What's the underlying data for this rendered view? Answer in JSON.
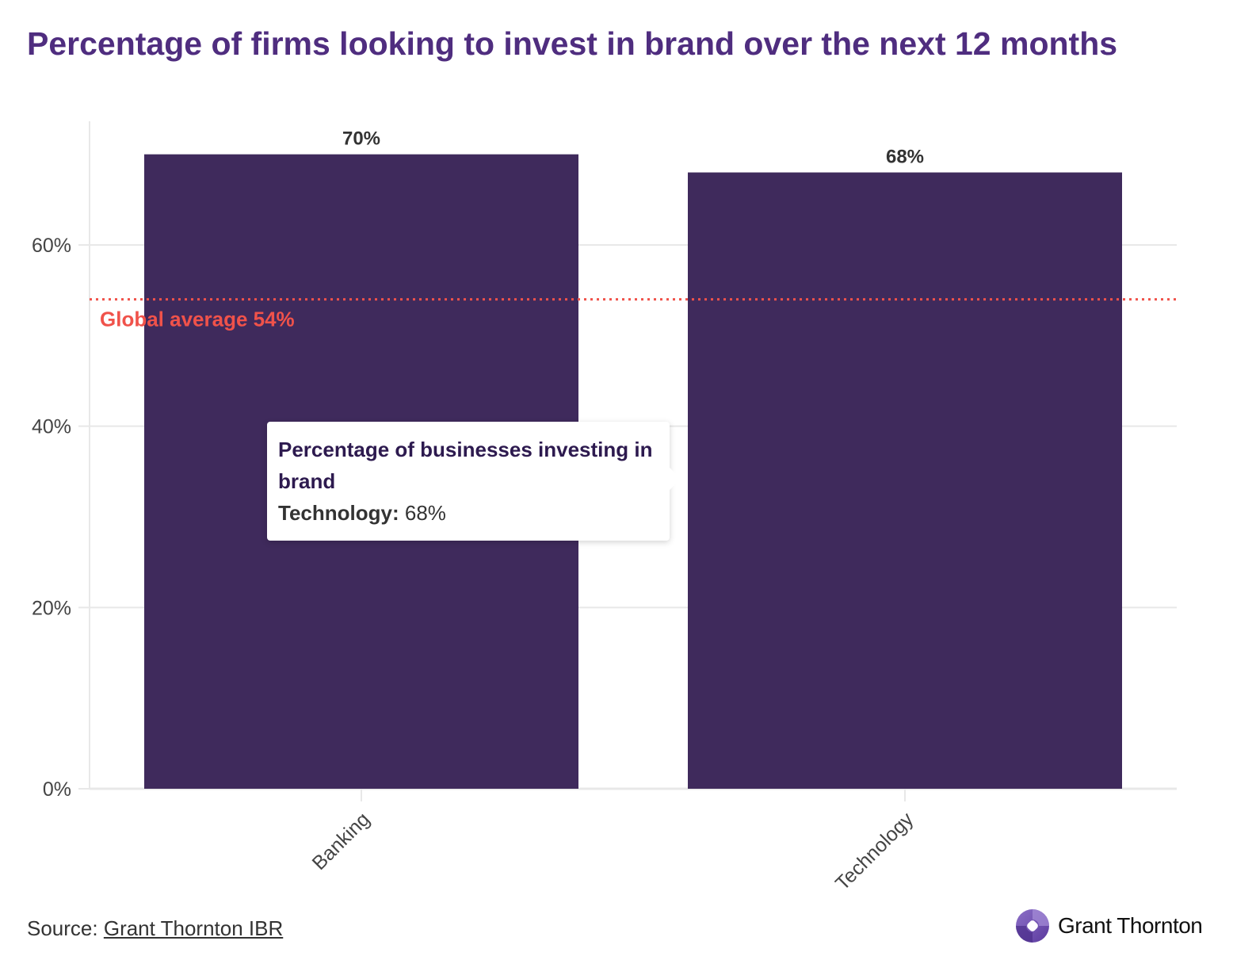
{
  "title": "Percentage of firms looking to invest in brand over the next 12 months",
  "chart_data": {
    "type": "bar",
    "title": "Percentage of firms looking to invest in brand over the next 12 months",
    "categories": [
      "Banking",
      "Technology"
    ],
    "series": [
      {
        "name": "Percentage of businesses investing in brand",
        "values": [
          70,
          68
        ]
      }
    ],
    "data_labels": [
      "70%",
      "68%"
    ],
    "xlabel": "",
    "ylabel": "",
    "ylim": [
      0,
      70
    ],
    "yticks": [
      0,
      20,
      40,
      60
    ],
    "ytick_labels": [
      "0%",
      "20%",
      "40%",
      "60%"
    ],
    "grid": true,
    "reference_line": {
      "value": 54,
      "label": "Global average 54%",
      "style": "dotted"
    },
    "colors": {
      "bar": "#3f2a5c",
      "reference": "#f0524a",
      "grid": "#e8e8e8"
    }
  },
  "tooltip": {
    "title": "Percentage of businesses investing in brand",
    "category_label": "Technology:",
    "value": "68%"
  },
  "footer": {
    "source_prefix": "Source:",
    "source_link": "Grant Thornton IBR",
    "logo_text": "Grant Thornton"
  }
}
